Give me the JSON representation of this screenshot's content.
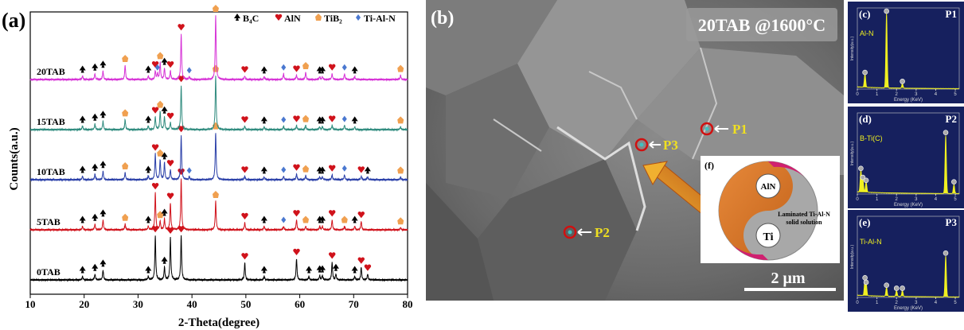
{
  "panel_a": {
    "label": "(a)",
    "x_label": "2-Theta(degree)",
    "y_label": "Counts(a.u.)",
    "xlim": [
      10,
      80
    ],
    "xticks": [
      10,
      20,
      30,
      40,
      50,
      60,
      70,
      80
    ],
    "legend": [
      {
        "name": "B₄C",
        "color": "#000000"
      },
      {
        "name": "AlN",
        "color": "#d0121b"
      },
      {
        "name": "TiB₂",
        "color": "#f0a050"
      },
      {
        "name": "Ti-Al-N",
        "color": "#4a78d0"
      }
    ],
    "series": [
      {
        "name": "0TAB",
        "color": "#000000",
        "x": [
          19.7,
          22,
          23.5,
          31.9,
          33.2,
          34.9,
          36,
          38,
          49.8,
          53.4,
          59.4,
          61.7,
          63.7,
          64.2,
          66,
          66.7,
          70.2,
          71.4,
          72.6
        ],
        "heights": [
          5,
          8,
          14,
          5,
          62,
          18,
          60,
          62,
          24,
          5,
          30,
          5,
          6,
          6,
          25,
          8,
          5,
          18,
          8
        ],
        "phases": [
          0,
          0,
          0,
          0,
          1,
          0,
          1,
          1,
          1,
          0,
          1,
          0,
          0,
          0,
          1,
          0,
          0,
          1,
          1
        ]
      },
      {
        "name": "5TAB",
        "color": "#d0121b",
        "x": [
          19.7,
          22,
          23.5,
          27.6,
          31.9,
          33.2,
          34.1,
          34.9,
          36,
          38,
          44.4,
          49.8,
          53.4,
          57,
          59.4,
          61.1,
          63.7,
          64.2,
          66,
          68.3,
          70.2,
          71.4,
          78.7
        ],
        "heights": [
          5,
          8,
          14,
          8,
          5,
          52,
          12,
          15,
          38,
          72,
          40,
          10,
          5,
          5,
          14,
          5,
          5,
          5,
          14,
          5,
          5,
          12,
          3
        ],
        "phases": [
          0,
          0,
          0,
          2,
          0,
          1,
          2,
          0,
          1,
          1,
          2,
          1,
          0,
          3,
          1,
          2,
          0,
          0,
          1,
          2,
          0,
          1,
          2
        ]
      },
      {
        "name": "10TAB",
        "color": "#2a3fa8",
        "x": [
          19.7,
          22,
          23.5,
          27.6,
          31.9,
          33.2,
          34.1,
          34.9,
          36,
          38,
          39.5,
          44.4,
          49.8,
          53.4,
          57,
          59.4,
          61.1,
          63.7,
          64.2,
          66,
          68.3,
          71.4,
          72.6,
          78.7
        ],
        "heights": [
          5,
          8,
          12,
          10,
          5,
          36,
          28,
          24,
          14,
          62,
          4,
          66,
          5,
          4,
          5,
          8,
          6,
          4,
          4,
          7,
          7,
          5,
          4,
          4
        ],
        "phases": [
          0,
          0,
          0,
          2,
          0,
          1,
          2,
          0,
          1,
          1,
          3,
          2,
          1,
          0,
          3,
          1,
          2,
          0,
          0,
          1,
          3,
          1,
          0,
          2
        ]
      },
      {
        "name": "15TAB",
        "color": "#2f8b7e",
        "x": [
          19.7,
          22,
          23.5,
          27.6,
          31.9,
          33.2,
          34.1,
          34.9,
          36,
          38,
          44.4,
          49.8,
          53.4,
          57,
          59.4,
          61.1,
          63.7,
          64.2,
          66,
          68.3,
          70.2,
          78.7
        ],
        "heights": [
          5,
          8,
          12,
          14,
          5,
          18,
          26,
          18,
          10,
          62,
          76,
          5,
          4,
          5,
          6,
          6,
          4,
          4,
          6,
          6,
          4,
          4
        ],
        "phases": [
          0,
          0,
          0,
          2,
          0,
          1,
          2,
          0,
          1,
          1,
          2,
          1,
          0,
          3,
          1,
          2,
          0,
          0,
          1,
          3,
          0,
          2
        ]
      },
      {
        "name": "20TAB",
        "color": "#d631d6",
        "x": [
          19.7,
          22,
          23.5,
          27.6,
          31.9,
          33.2,
          33.6,
          34.1,
          34.9,
          36,
          38,
          39.5,
          44.4,
          49.8,
          53.4,
          57,
          59.4,
          61.1,
          63.7,
          64.2,
          66,
          68.3,
          70.2,
          78.7
        ],
        "heights": [
          5,
          8,
          12,
          20,
          5,
          12,
          8,
          24,
          16,
          12,
          64,
          4,
          90,
          5,
          4,
          8,
          6,
          10,
          4,
          4,
          8,
          8,
          4,
          6
        ],
        "phases": [
          0,
          0,
          0,
          2,
          0,
          1,
          3,
          2,
          0,
          1,
          1,
          3,
          2,
          1,
          0,
          3,
          1,
          2,
          0,
          0,
          1,
          3,
          0,
          2
        ]
      }
    ]
  },
  "panel_b": {
    "label": "(b)",
    "condition": "20TAB  @1600°C",
    "points": [
      "P1",
      "P2",
      "P3"
    ],
    "inset_label": "(f)",
    "inset_top": "AlN",
    "inset_bottom": "Ti",
    "inset_note_1": "Laminated Ti-Al-N",
    "inset_note_2": "solid solution",
    "scale_bar": "2 μm"
  },
  "eds": [
    {
      "label": "(c)",
      "point": "P1",
      "phase": "Al-N",
      "x_label": "Energy (KeV)",
      "y_label": "Intensity(a.u.)",
      "xlim": [
        0,
        5.2
      ],
      "xticks": [
        0,
        1,
        2,
        3,
        4,
        5
      ],
      "x": [
        0.39,
        1.49,
        2.3
      ],
      "heights": [
        18,
        100,
        6
      ]
    },
    {
      "label": "(d)",
      "point": "P2",
      "phase": "B-Ti(C)",
      "x_label": "Energy (KeV)",
      "y_label": "Intensity(a.u.)",
      "xlim": [
        0,
        5.2
      ],
      "xticks": [
        0,
        1,
        2,
        3,
        4,
        5
      ],
      "x": [
        0.18,
        0.28,
        0.45,
        4.51,
        4.93
      ],
      "heights": [
        30,
        18,
        14,
        78,
        12
      ]
    },
    {
      "label": "(e)",
      "point": "P3",
      "phase": "Ti-Al-N",
      "x_label": "Energy (KeV)",
      "y_label": "Intensity(a.u.)",
      "xlim": [
        0,
        5.2
      ],
      "xticks": [
        0,
        1,
        2,
        3,
        4,
        5
      ],
      "x": [
        0.39,
        0.45,
        1.49,
        2.0,
        2.3,
        4.51
      ],
      "heights": [
        22,
        16,
        12,
        8,
        8,
        55
      ]
    }
  ]
}
